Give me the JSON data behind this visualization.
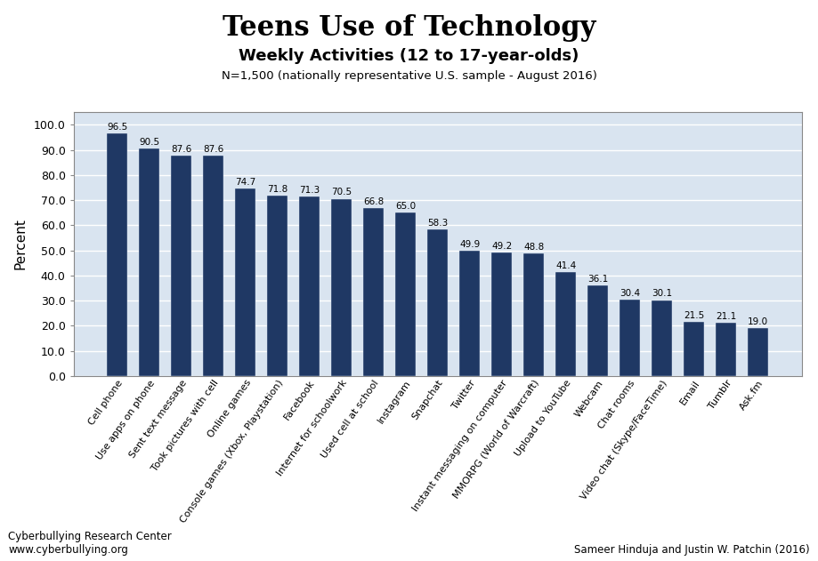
{
  "title": "Teens Use of Technology",
  "subtitle": "Weekly Activities (12 to 17-year-olds)",
  "subtitle2": "N=1,500 (nationally representative U.S. sample - August 2016)",
  "ylabel": "Percent",
  "categories": [
    "Cell phone",
    "Use apps on phone",
    "Sent text message",
    "Took pictures with cell",
    "Online games",
    "Console games (Xbox, Playstation)",
    "Facebook",
    "Internet for schoolwork",
    "Used cell at school",
    "Instagram",
    "Snapchat",
    "Twitter",
    "Instant messaging on computer",
    "MMORPG (World of Warcraft)",
    "Upload to YouTube",
    "Webcam",
    "Chat rooms",
    "Video chat (Skype/FaceTime)",
    "Email",
    "Tumblr",
    "Ask.fm"
  ],
  "values": [
    96.5,
    90.5,
    87.6,
    87.6,
    74.7,
    71.8,
    71.3,
    70.5,
    66.8,
    65.0,
    58.3,
    49.9,
    49.2,
    48.8,
    41.4,
    36.1,
    30.4,
    30.1,
    21.5,
    21.1,
    19.0
  ],
  "bar_color": "#1F3864",
  "background_color": "#D9E4F0",
  "ylim": [
    0,
    105
  ],
  "yticks": [
    0.0,
    10.0,
    20.0,
    30.0,
    40.0,
    50.0,
    60.0,
    70.0,
    80.0,
    90.0,
    100.0
  ],
  "footer_left1": "Cyberbullying Research Center",
  "footer_left2": "www.cyberbullying.org",
  "footer_right": "Sameer Hinduja and Justin W. Patchin (2016)",
  "title_fontsize": 22,
  "subtitle_fontsize": 13,
  "subtitle2_fontsize": 9.5,
  "ylabel_fontsize": 11,
  "tick_fontsize": 9,
  "label_fontsize": 8,
  "value_fontsize": 7.5
}
